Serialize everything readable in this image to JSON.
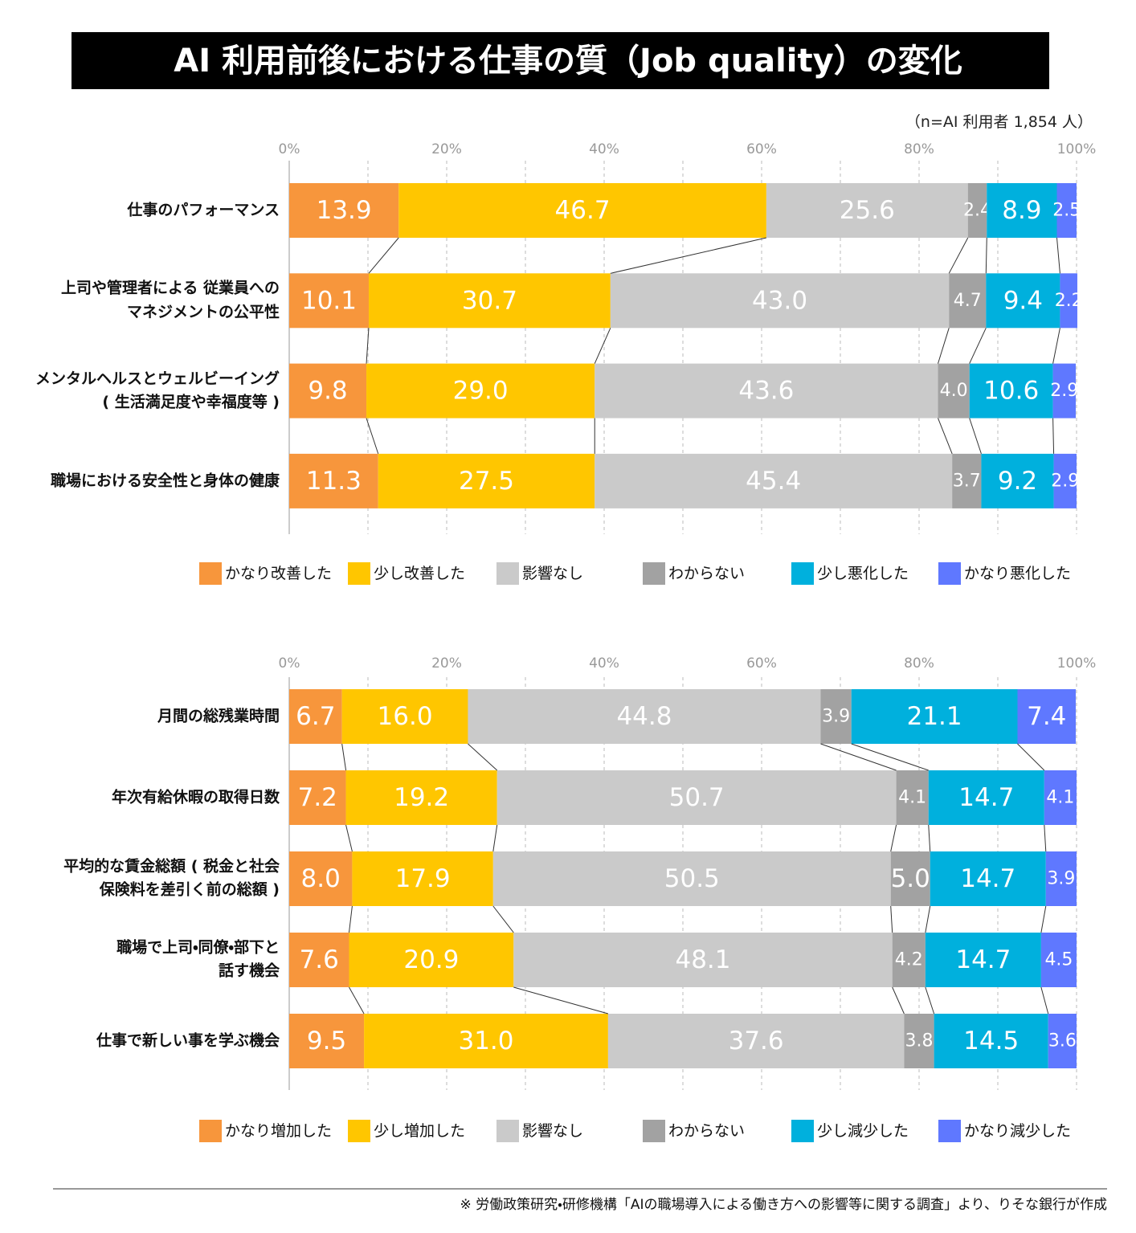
{
  "title": "AI 利用前後における仕事の質（Job quality）の変化",
  "note": "（n=AI 利用者 1,854 人）",
  "footnote": "※ 労働政策研究・研修機構「AIの職場導入による働き方への影響等に関する調査」より、りそな銀行が作成",
  "chart_data": [
    {
      "type": "bar",
      "orientation": "horizontal",
      "stacked": true,
      "categories": [
        "仕事のパフォーマンス",
        "上司や管理者による 従業員への\nマネジメントの公平性",
        "メンタルヘルスとウェルビーイング\n( 生活満足度や幸福度等 )",
        "職場における安全性と身体の健康"
      ],
      "series": [
        {
          "name": "かなり改善した",
          "color": "#f7963c",
          "values": [
            13.9,
            10.1,
            9.8,
            11.3
          ],
          "value_labels": [
            "13.9",
            "10.1",
            "9.8",
            "11.3"
          ]
        },
        {
          "name": "少し改善した",
          "color": "#ffc600",
          "values": [
            46.7,
            30.7,
            29.0,
            27.5
          ],
          "value_labels": [
            "46.7",
            "30.7",
            "29.0",
            "27.5"
          ]
        },
        {
          "name": "影響なし",
          "color": "#cacaca",
          "values": [
            25.6,
            43.0,
            43.6,
            45.4
          ],
          "value_labels": [
            "25.6",
            "43.0",
            "43.6",
            "45.4"
          ]
        },
        {
          "name": "わからない",
          "color": "#a2a2a2",
          "values": [
            2.4,
            4.7,
            4.0,
            3.7
          ],
          "value_labels": [
            "2.4",
            "4.7",
            "4.0",
            "3.7"
          ]
        },
        {
          "name": "少し悪化した",
          "color": "#00b0dd",
          "values": [
            8.9,
            9.4,
            10.6,
            9.2
          ],
          "value_labels": [
            "8.9",
            "9.4",
            "10.6",
            "9.2"
          ]
        },
        {
          "name": "かなり悪化した",
          "color": "#5f78ff",
          "values": [
            2.5,
            2.2,
            2.9,
            2.9
          ],
          "value_labels": [
            "2.5",
            "2.2",
            "2.9",
            "2.9"
          ]
        }
      ],
      "xlim": [
        0,
        100
      ],
      "xticks": [
        {
          "value": 0,
          "label": "0%"
        },
        {
          "value": 20,
          "label": "20%"
        },
        {
          "value": 40,
          "label": "40%"
        },
        {
          "value": 60,
          "label": "60%"
        },
        {
          "value": 80,
          "label": "80%"
        },
        {
          "value": 100,
          "label": "100%"
        }
      ],
      "minor_xticks": [
        10,
        30,
        50,
        70,
        90
      ],
      "grid": true,
      "legend": "bottom"
    },
    {
      "type": "bar",
      "orientation": "horizontal",
      "stacked": true,
      "categories": [
        "月間の総残業時間",
        "年次有給休暇の取得日数",
        "平均的な賃金総額 ( 税金と社会\n保険料を差引く前の総額 )",
        "職場で上司・同僚・部下と\n話す機会",
        "仕事で新しい事を学ぶ機会"
      ],
      "series": [
        {
          "name": "かなり増加した",
          "color": "#f7963c",
          "values": [
            6.7,
            7.2,
            8.0,
            7.6,
            9.5
          ],
          "value_labels": [
            "6.7",
            "7.2",
            "8.0",
            "7.6",
            "9.5"
          ]
        },
        {
          "name": "少し増加した",
          "color": "#ffc600",
          "values": [
            16.0,
            19.2,
            17.9,
            20.9,
            31.0
          ],
          "value_labels": [
            "16.0",
            "19.2",
            "17.9",
            "20.9",
            "31.0"
          ]
        },
        {
          "name": "影響なし",
          "color": "#cacaca",
          "values": [
            44.8,
            50.7,
            50.5,
            48.1,
            37.6
          ],
          "value_labels": [
            "44.8",
            "50.7",
            "50.5",
            "48.1",
            "37.6"
          ]
        },
        {
          "name": "わからない",
          "color": "#a2a2a2",
          "values": [
            3.9,
            4.1,
            5.0,
            4.2,
            3.8
          ],
          "value_labels": [
            "3.9",
            "4.1",
            "5.0",
            "4.2",
            "3.8"
          ]
        },
        {
          "name": "少し減少した",
          "color": "#00b0dd",
          "values": [
            21.1,
            14.7,
            14.7,
            14.7,
            14.5
          ],
          "value_labels": [
            "21.1",
            "14.7",
            "14.7",
            "14.7",
            "14.5"
          ]
        },
        {
          "name": "かなり減少した",
          "color": "#5f78ff",
          "values": [
            7.4,
            4.1,
            3.9,
            4.5,
            3.6
          ],
          "value_labels": [
            "7.4",
            "4.1",
            "3.9",
            "4.5",
            "3.6"
          ]
        }
      ],
      "xlim": [
        0,
        100
      ],
      "xticks": [
        {
          "value": 0,
          "label": "0%"
        },
        {
          "value": 20,
          "label": "20%"
        },
        {
          "value": 40,
          "label": "40%"
        },
        {
          "value": 60,
          "label": "60%"
        },
        {
          "value": 80,
          "label": "80%"
        },
        {
          "value": 100,
          "label": "100%"
        }
      ],
      "minor_xticks": [
        10,
        30,
        50,
        70,
        90
      ],
      "grid": true,
      "legend": "bottom"
    }
  ]
}
